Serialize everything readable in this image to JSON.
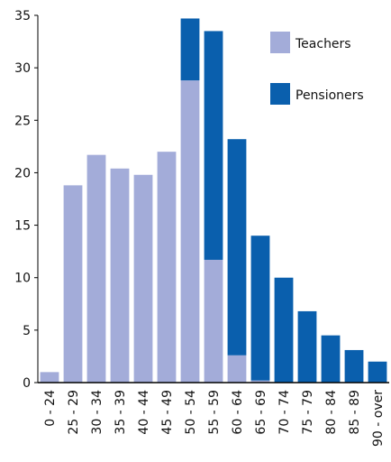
{
  "chart_data": {
    "type": "bar",
    "stacked": true,
    "categories": [
      "0 - 24",
      "25 - 29",
      "30 - 34",
      "35 - 39",
      "40 - 44",
      "45 - 49",
      "50 - 54",
      "55 - 59",
      "60 - 64",
      "65 - 69",
      "70 - 74",
      "75 - 79",
      "80 - 84",
      "85 - 89",
      "90 - over"
    ],
    "series": [
      {
        "name": "Teachers",
        "color": "#a3acd9",
        "values": [
          1.0,
          18.8,
          21.7,
          20.4,
          19.8,
          22.0,
          28.8,
          11.7,
          2.6,
          0.2,
          0,
          0,
          0,
          0,
          0
        ]
      },
      {
        "name": "Pensioners",
        "color": "#0a5fad",
        "values": [
          0,
          0,
          0,
          0,
          0,
          0,
          5.9,
          21.8,
          20.6,
          13.8,
          10.0,
          6.8,
          4.5,
          3.1,
          2.0
        ]
      }
    ],
    "ylim": [
      0,
      35
    ],
    "yticks": [
      0,
      5,
      10,
      15,
      20,
      25,
      30,
      35
    ],
    "grid": false,
    "legend": "upper right"
  }
}
